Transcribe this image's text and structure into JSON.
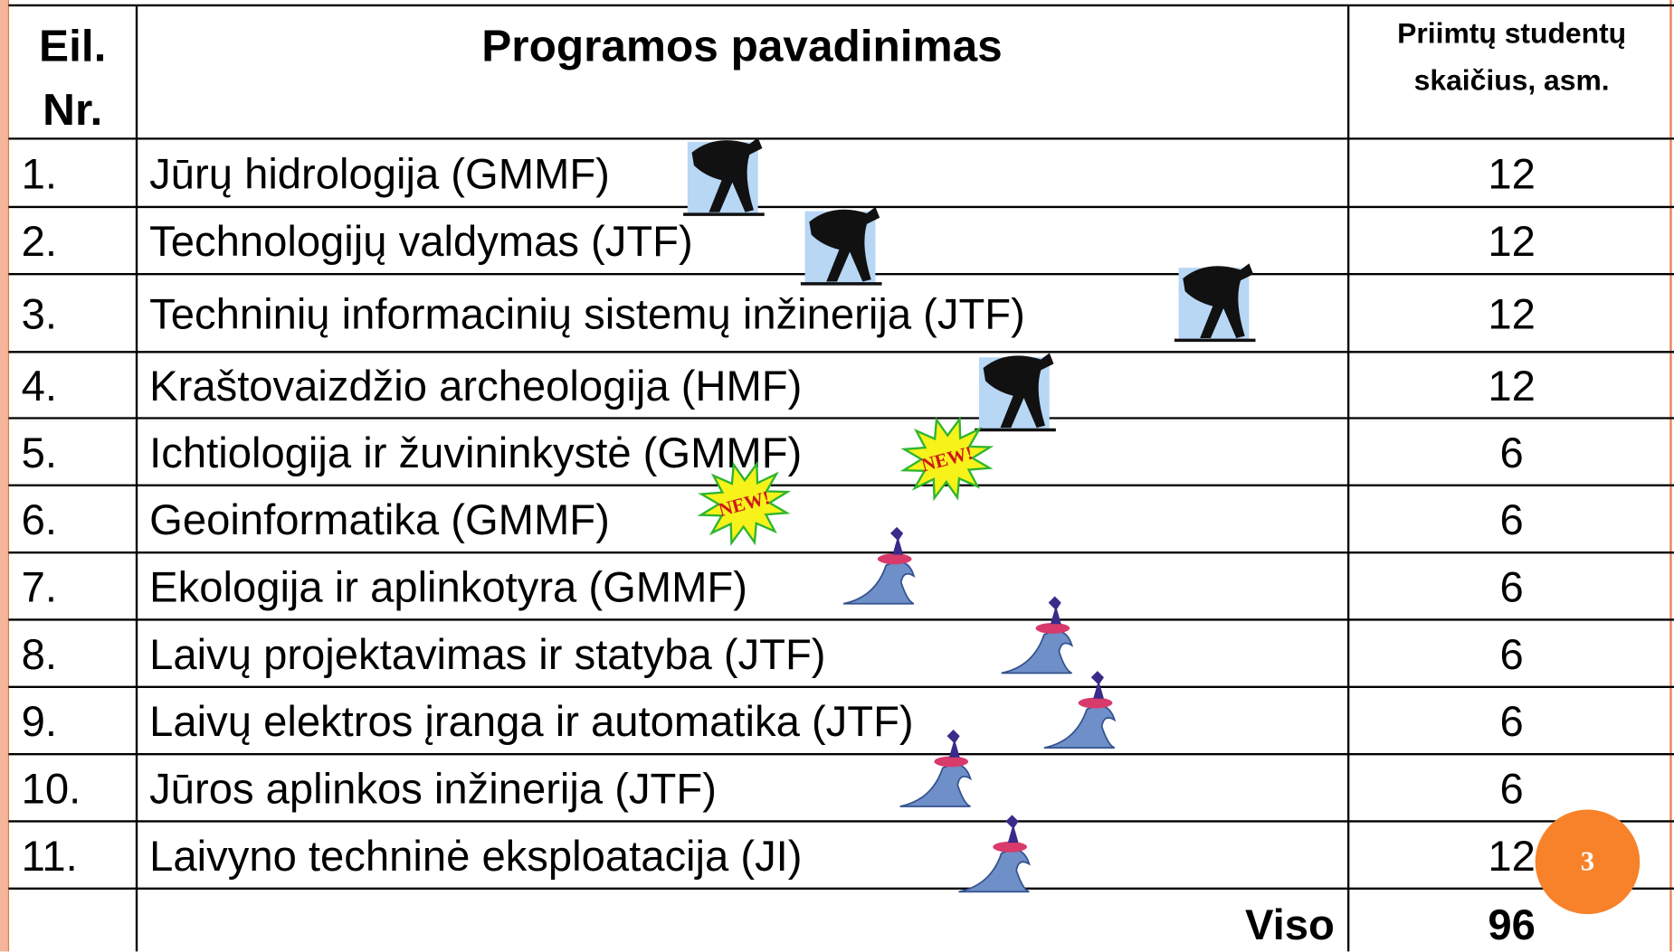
{
  "table": {
    "header": {
      "number": [
        "Eil.",
        "Nr."
      ],
      "program": "Programos pavadinimas",
      "students": [
        "Priimtų studentų",
        "skaičius,  asm."
      ]
    },
    "rows": [
      [
        "1.",
        "Jūrų hidrologija (GMMF)",
        12
      ],
      [
        "2.",
        "Technologijų valdymas (JTF)",
        12
      ],
      [
        "3.",
        "Techninių informacinių sistemų inžinerija (JTF)",
        12
      ],
      [
        "4.",
        "Kraštovaizdžio archeologija (HMF)",
        12
      ],
      [
        "5.",
        "Ichtiologija ir žuvininkystė (GMMF)",
        6
      ],
      [
        "6.",
        "Geoinformatika (GMMF)",
        6
      ],
      [
        "7.",
        "Ekologija ir aplinkotyra (GMMF)",
        6
      ],
      [
        "8.",
        "Laivų projektavimas ir statyba (JTF)",
        6
      ],
      [
        "9.",
        "Laivų elektros įranga ir automatika (JTF)",
        6
      ],
      [
        "10.",
        "Jūros aplinkos inžinerija (JTF)",
        6
      ],
      [
        "11.",
        "Laivyno techninė eksploatacija (JI)",
        12
      ]
    ],
    "total": {
      "label": "Viso",
      "value": 96
    }
  },
  "badges": [
    "NEW!",
    "NEW!"
  ],
  "page_number": "3"
}
